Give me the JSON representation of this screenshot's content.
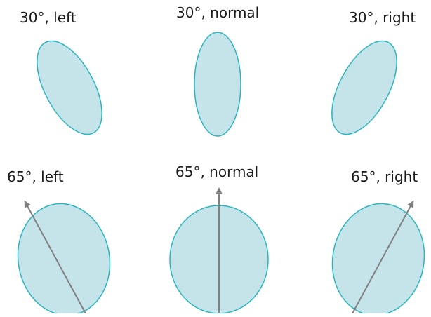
{
  "labels": {
    "top_left": "30°, left",
    "top_center": "30°, normal",
    "top_right": "30°, right",
    "bottom_left": "65°, left",
    "bottom_center": "65°, normal",
    "bottom_right": "65°, right"
  },
  "colors": {
    "ellipse_fill": "#c4e4ea",
    "ellipse_stroke": "#2bb5bf",
    "arrow": "#808080",
    "text": "#1a1a1a"
  }
}
